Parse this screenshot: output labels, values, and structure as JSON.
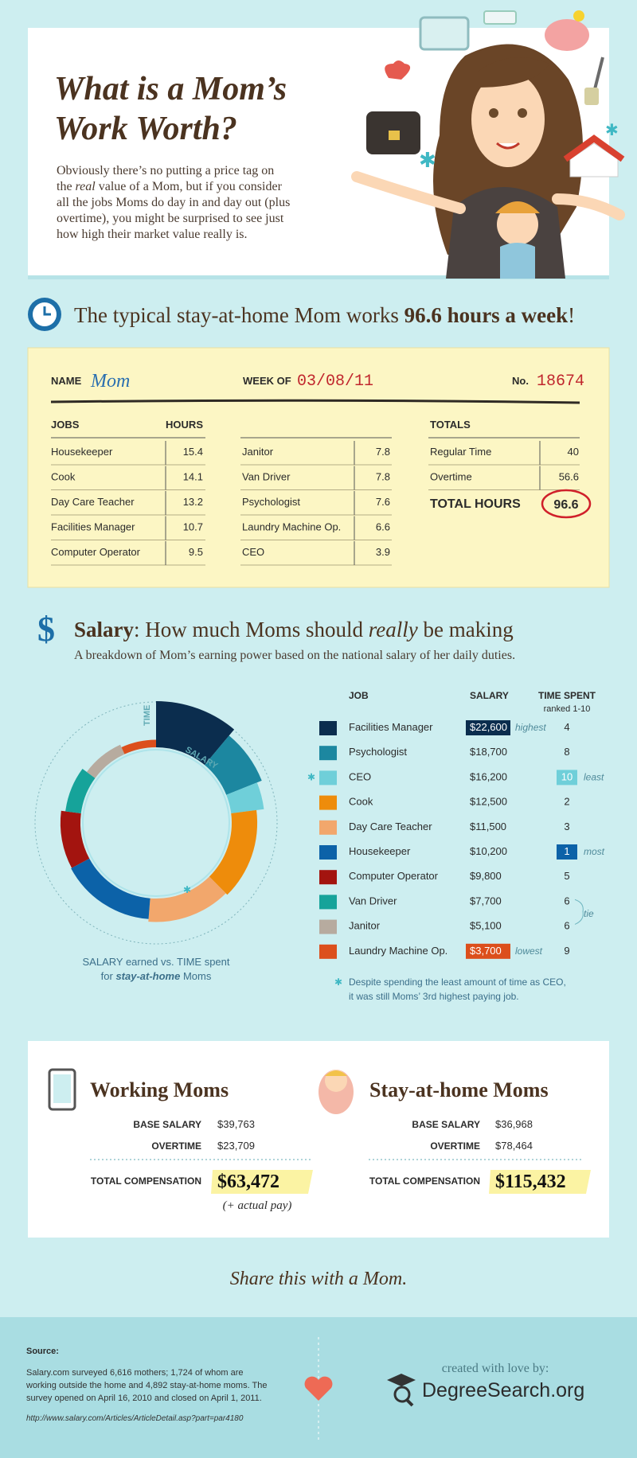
{
  "header": {
    "title": [
      "What is a Mom’s",
      "Work Worth?"
    ],
    "intro": [
      [
        "Obviously there’s no putting a price tag on"
      ],
      [
        "the ",
        "real",
        " value of a Mom, but if you consider"
      ],
      [
        "all the jobs Moms do day in and day out (plus"
      ],
      [
        "overtime), you might be surprised to see just"
      ],
      [
        "how high their market value really is."
      ]
    ]
  },
  "hours": {
    "headline": [
      "The typical stay-at-home Mom works ",
      "96.6 hours a week",
      "!"
    ]
  },
  "timesheet": {
    "name_label": "NAME",
    "name": "Mom",
    "week_label": "WEEK OF",
    "week": "03/08/11",
    "number_label": "No.",
    "number": "18674",
    "jobs_header": "JOBS",
    "hours_header": "HOURS",
    "jobs": [
      {
        "name": "Housekeeper",
        "hours": 15.4
      },
      {
        "name": "Cook",
        "hours": 14.1
      },
      {
        "name": "Day Care Teacher",
        "hours": 13.2
      },
      {
        "name": "Facilities Manager",
        "hours": 10.7
      },
      {
        "name": "Computer Operator",
        "hours": 9.5
      },
      {
        "name": "Janitor",
        "hours": 7.8
      },
      {
        "name": "Van Driver",
        "hours": 7.8
      },
      {
        "name": "Psychologist",
        "hours": 7.6
      },
      {
        "name": "Laundry Machine Op.",
        "hours": 6.6
      },
      {
        "name": "CEO",
        "hours": 3.9
      }
    ],
    "totals_header": "TOTALS",
    "totals": [
      {
        "name": "Regular Time",
        "hours": 40
      },
      {
        "name": "Overtime",
        "hours": 56.6
      }
    ],
    "total_label": "TOTAL HOURS",
    "total": 96.6
  },
  "salary": {
    "title": [
      "Salary",
      ": How much Moms should ",
      "really",
      " be making"
    ],
    "subtitle": "A breakdown of Mom’s earning power based on the national salary of her daily duties.",
    "headers": [
      "JOB",
      "SALARY",
      "TIME SPENT"
    ],
    "ranked_note": "ranked 1-10",
    "ranks": [
      4,
      8,
      10,
      2,
      3,
      1,
      5,
      6,
      6,
      9
    ],
    "salary_notes": [
      "highest",
      null,
      null,
      null,
      null,
      null,
      null,
      null,
      null,
      "lowest"
    ],
    "rank_notes": [
      null,
      null,
      "least",
      null,
      null,
      "most",
      null,
      "tie",
      null,
      null
    ],
    "footnote_mark": "✱",
    "footnote": [
      "Despite spending the least amount of time as CEO,",
      "it was still Moms’ 3rd highest paying job."
    ]
  },
  "chart_data": {
    "type": "radial-bar",
    "categories": [
      "Facilities Manager",
      "Psychologist",
      "CEO",
      "Cook",
      "Day Care Teacher",
      "Housekeeper",
      "Computer Operator",
      "Van Driver",
      "Janitor",
      "Laundry Machine Op."
    ],
    "colors": [
      "#0b2d4e",
      "#1c87a0",
      "#6fcfd9",
      "#ee8c0b",
      "#f2a76c",
      "#0c62a8",
      "#a3140f",
      "#16a39a",
      "#b7ab9f",
      "#dc4f1c"
    ],
    "values": [
      22600,
      18700,
      16200,
      12500,
      11500,
      10200,
      9800,
      7700,
      5100,
      3700
    ],
    "value_labels": [
      "$22,600",
      "$18,700",
      "$16,200",
      "$12,500",
      "$11,500",
      "$10,200",
      "$9,800",
      "$7,700",
      "$5,100",
      "$3,700"
    ],
    "angle_label": "TIME",
    "radius_label": "SALARY",
    "caption": [
      [
        "SALARY earned vs. TIME spent"
      ],
      [
        "for ",
        "stay-at-home",
        " Moms"
      ]
    ]
  },
  "compensation": [
    {
      "title": "Working Moms",
      "rows": [
        {
          "label": "BASE SALARY",
          "value": "$39,763"
        },
        {
          "label": "OVERTIME",
          "value": "$23,709"
        }
      ],
      "total_label": "TOTAL COMPENSATION",
      "total": "$63,472",
      "note": "(+ actual pay)"
    },
    {
      "title": "Stay-at-home Moms",
      "rows": [
        {
          "label": "BASE SALARY",
          "value": "$36,968"
        },
        {
          "label": "OVERTIME",
          "value": "$78,464"
        }
      ],
      "total_label": "TOTAL COMPENSATION",
      "total": "$115,432"
    }
  ],
  "share": "Share this with a Mom.",
  "footer": {
    "source_label": "Source:",
    "source": [
      "Salary.com surveyed 6,616 mothers; 1,724 of whom are",
      "working outside the home and 4,892 stay-at-home moms. The",
      "survey opened on April 16, 2010 and closed on April 1, 2011."
    ],
    "url": "http://www.salary.com/Articles/ArticleDetail.asp?part=par4180",
    "credit": "created with love by:",
    "brand": "DegreeSearch.org"
  }
}
